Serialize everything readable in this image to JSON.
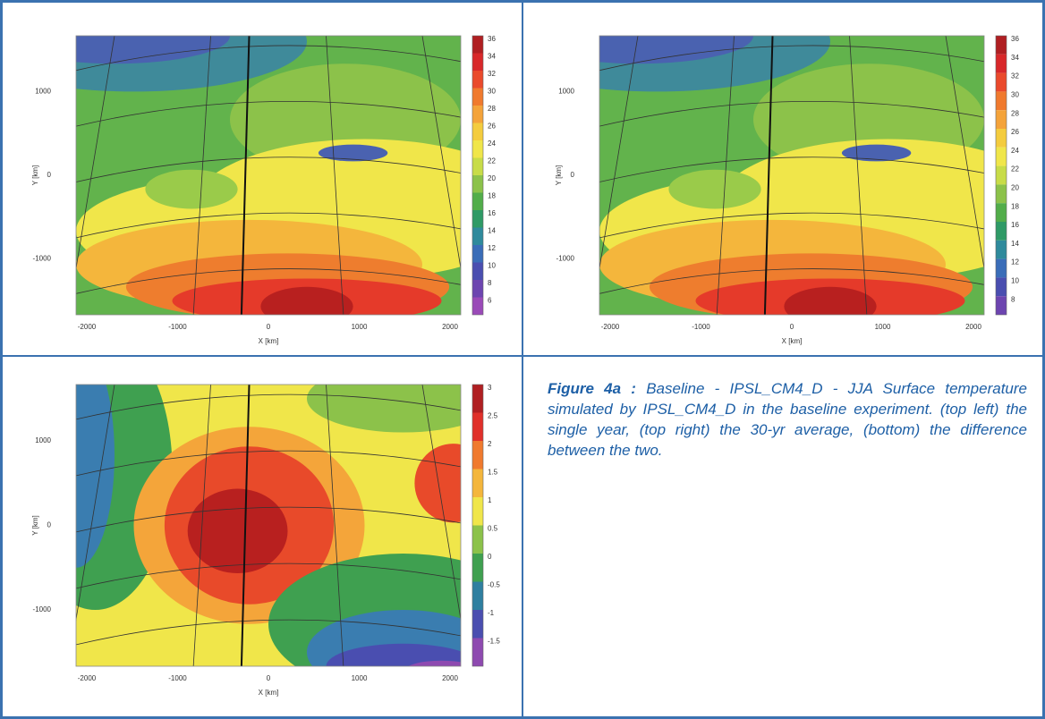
{
  "panels": [
    {
      "y_axis_label": "Y [km]",
      "x_axis_label": "X [km]",
      "y_ticks": [
        1000,
        0,
        -1000
      ],
      "x_ticks": [
        -2000,
        -1000,
        0,
        1000,
        2000
      ],
      "colorbar": [
        36,
        34,
        32,
        30,
        28,
        26,
        24,
        22,
        20,
        18,
        16,
        14,
        12,
        10,
        8,
        6
      ]
    },
    {
      "y_axis_label": "Y [km]",
      "x_axis_label": "X [km]",
      "y_ticks": [
        1000,
        0,
        -1000
      ],
      "x_ticks": [
        -2000,
        -1000,
        0,
        1000,
        2000
      ],
      "colorbar": [
        36,
        34,
        32,
        30,
        28,
        26,
        24,
        22,
        20,
        18,
        16,
        14,
        12,
        10,
        8
      ]
    },
    {
      "y_axis_label": "Y [km]",
      "x_axis_label": "X [km]",
      "y_ticks": [
        1000,
        0,
        -1000
      ],
      "x_ticks": [
        -2000,
        -1000,
        0,
        1000,
        2000
      ],
      "colorbar": [
        3,
        2.5,
        2,
        1.5,
        1,
        0.5,
        0,
        -0.5,
        -1,
        -1.5
      ]
    }
  ],
  "caption": {
    "label": "Figure 4a :",
    "text": "Baseline - IPSL_CM4_D - JJA Surface temperature simulated by IPSL_CM4_D in the baseline experiment. (top left) the single year, (top right) the 30-yr average, (bottom) the difference between the two."
  }
}
